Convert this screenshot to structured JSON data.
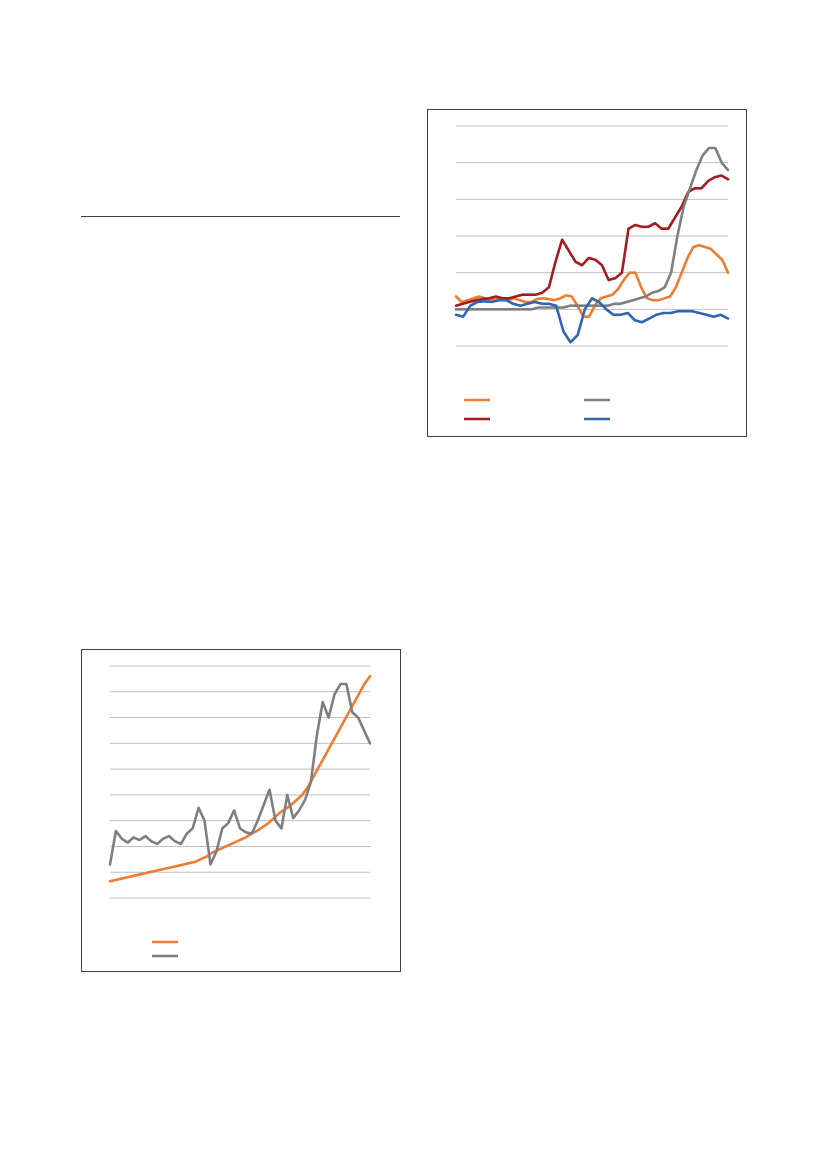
{
  "page": {
    "rule": "horizontal-divider"
  },
  "chart_data": [
    {
      "id": "chart-right",
      "type": "line",
      "title": "",
      "xlabel": "",
      "ylabel": "",
      "grid": true,
      "gridlines": 7,
      "legend_placement": "bottom",
      "x_count": 60,
      "ylim": [
        -1,
        5
      ],
      "series": [
        {
          "name": "",
          "color": "#ED7D31",
          "values": [
            0.35,
            0.2,
            0.25,
            0.3,
            0.35,
            0.3,
            0.25,
            0.3,
            0.3,
            0.25,
            0.3,
            0.25,
            0.2,
            0.2,
            0.28,
            0.3,
            0.28,
            0.25,
            0.3,
            0.38,
            0.35,
            0.1,
            -0.2,
            -0.2,
            0.1,
            0.3,
            0.35,
            0.4,
            0.55,
            0.8,
            1.0,
            1.0,
            0.6,
            0.3,
            0.25,
            0.25,
            0.3,
            0.35,
            0.6,
            1.0,
            1.4,
            1.7,
            1.75,
            1.7,
            1.65,
            1.5,
            1.35,
            1.0
          ]
        },
        {
          "name": "",
          "color": "#A31C1F",
          "values": [
            0.1,
            0.15,
            0.2,
            0.25,
            0.28,
            0.3,
            0.35,
            0.3,
            0.3,
            0.35,
            0.4,
            0.4,
            0.4,
            0.45,
            0.6,
            1.3,
            1.9,
            1.6,
            1.3,
            1.2,
            1.4,
            1.35,
            1.2,
            0.8,
            0.85,
            1.0,
            2.2,
            2.3,
            2.25,
            2.25,
            2.35,
            2.2,
            2.2,
            2.5,
            2.8,
            3.2,
            3.3,
            3.3,
            3.5,
            3.6,
            3.65,
            3.55
          ]
        },
        {
          "name": "",
          "color": "#7F7F7F",
          "values": [
            0.0,
            0.0,
            0.0,
            0.0,
            0.0,
            0.0,
            0.0,
            0.0,
            0.0,
            0.0,
            0.0,
            0.0,
            0.0,
            0.05,
            0.05,
            0.05,
            0.05,
            0.05,
            0.1,
            0.1,
            0.1,
            0.1,
            0.1,
            0.1,
            0.1,
            0.15,
            0.15,
            0.2,
            0.25,
            0.3,
            0.35,
            0.45,
            0.5,
            0.6,
            1.0,
            2.0,
            2.8,
            3.3,
            3.8,
            4.2,
            4.4,
            4.4,
            4.0,
            3.8
          ]
        },
        {
          "name": "",
          "color": "#2E66B0",
          "values": [
            -0.15,
            -0.2,
            0.1,
            0.2,
            0.22,
            0.2,
            0.25,
            0.25,
            0.15,
            0.1,
            0.15,
            0.2,
            0.15,
            0.15,
            0.1,
            -0.6,
            -0.9,
            -0.7,
            0.0,
            0.3,
            0.2,
            0.0,
            -0.15,
            -0.15,
            -0.1,
            -0.3,
            -0.35,
            -0.25,
            -0.15,
            -0.1,
            -0.1,
            -0.05,
            -0.05,
            -0.05,
            -0.1,
            -0.15,
            -0.2,
            -0.15,
            -0.25
          ]
        }
      ]
    },
    {
      "id": "chart-left",
      "type": "line",
      "title": "",
      "xlabel": "",
      "ylabel": "",
      "grid": true,
      "gridlines": 10,
      "legend_placement": "bottom",
      "x_count": 60,
      "ylim": [
        0,
        9
      ],
      "series": [
        {
          "name": "",
          "color": "#ED7D31",
          "values": [
            0.65,
            0.7,
            0.75,
            0.8,
            0.85,
            0.9,
            0.95,
            1.0,
            1.05,
            1.1,
            1.15,
            1.2,
            1.25,
            1.3,
            1.35,
            1.4,
            1.5,
            1.6,
            1.75,
            1.85,
            1.95,
            2.05,
            2.15,
            2.25,
            2.35,
            2.5,
            2.6,
            2.75,
            2.9,
            3.1,
            3.3,
            3.45,
            3.6,
            3.8,
            4.0,
            4.3,
            4.7,
            5.1,
            5.5,
            5.9,
            6.3,
            6.7,
            7.1,
            7.5,
            7.9,
            8.3,
            8.6
          ]
        },
        {
          "name": "",
          "color": "#7F7F7F",
          "values": [
            1.3,
            2.6,
            2.3,
            2.15,
            2.35,
            2.25,
            2.4,
            2.2,
            2.1,
            2.3,
            2.4,
            2.2,
            2.1,
            2.5,
            2.7,
            3.5,
            3.0,
            1.3,
            1.8,
            2.7,
            2.9,
            3.4,
            2.7,
            2.55,
            2.5,
            3.0,
            3.6,
            4.2,
            3.0,
            2.7,
            4.0,
            3.1,
            3.4,
            3.8,
            4.5,
            6.3,
            7.6,
            7.0,
            7.9,
            8.3,
            8.3,
            7.2,
            7.0,
            6.5,
            6.0
          ]
        }
      ]
    }
  ]
}
